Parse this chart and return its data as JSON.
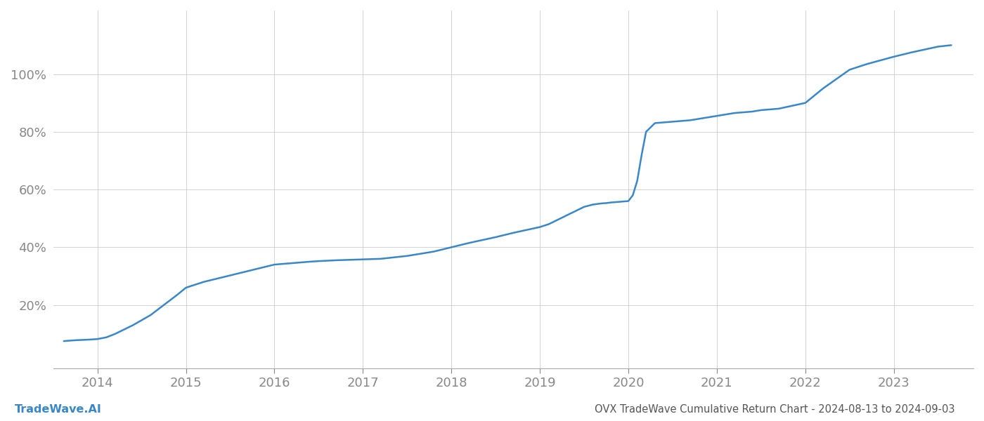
{
  "title": "OVX TradeWave Cumulative Return Chart - 2024-08-13 to 2024-09-03",
  "watermark": "TradeWave.AI",
  "line_color": "#3a87c8",
  "background_color": "#ffffff",
  "grid_color": "#cccccc",
  "x_years": [
    2013.62,
    2013.75,
    2013.9,
    2014.0,
    2014.1,
    2014.2,
    2014.4,
    2014.6,
    2014.75,
    2014.9,
    2015.0,
    2015.1,
    2015.2,
    2015.4,
    2015.6,
    2015.8,
    2016.0,
    2016.2,
    2016.4,
    2016.5,
    2016.7,
    2017.0,
    2017.2,
    2017.5,
    2017.8,
    2018.0,
    2018.2,
    2018.5,
    2018.7,
    2019.0,
    2019.1,
    2019.2,
    2019.3,
    2019.4,
    2019.5,
    2019.6,
    2019.7,
    2019.75,
    2019.8,
    2020.0,
    2020.05,
    2020.1,
    2020.15,
    2020.2,
    2020.3,
    2020.5,
    2020.7,
    2021.0,
    2021.2,
    2021.4,
    2021.5,
    2021.7,
    2022.0,
    2022.2,
    2022.5,
    2022.7,
    2023.0,
    2023.2,
    2023.5,
    2023.65
  ],
  "y_values": [
    7.5,
    7.8,
    8.0,
    8.2,
    8.8,
    10.0,
    13.0,
    16.5,
    20.0,
    23.5,
    26.0,
    27.0,
    28.0,
    29.5,
    31.0,
    32.5,
    34.0,
    34.5,
    35.0,
    35.2,
    35.5,
    35.8,
    36.0,
    37.0,
    38.5,
    40.0,
    41.5,
    43.5,
    45.0,
    47.0,
    48.0,
    49.5,
    51.0,
    52.5,
    54.0,
    54.8,
    55.2,
    55.3,
    55.5,
    56.0,
    58.0,
    63.0,
    72.0,
    80.0,
    83.0,
    83.5,
    84.0,
    85.5,
    86.5,
    87.0,
    87.5,
    88.0,
    90.0,
    95.0,
    101.5,
    103.5,
    106.0,
    107.5,
    109.5,
    110.0
  ],
  "xlim": [
    2013.5,
    2023.9
  ],
  "ylim": [
    -2,
    122
  ],
  "yticks": [
    20,
    40,
    60,
    80,
    100
  ],
  "xticks": [
    2014,
    2015,
    2016,
    2017,
    2018,
    2019,
    2020,
    2021,
    2022,
    2023
  ],
  "tick_label_color": "#888888",
  "title_color": "#555555",
  "watermark_color": "#3a87c8",
  "line_width": 1.8,
  "figsize": [
    14.0,
    6.0
  ],
  "dpi": 100
}
